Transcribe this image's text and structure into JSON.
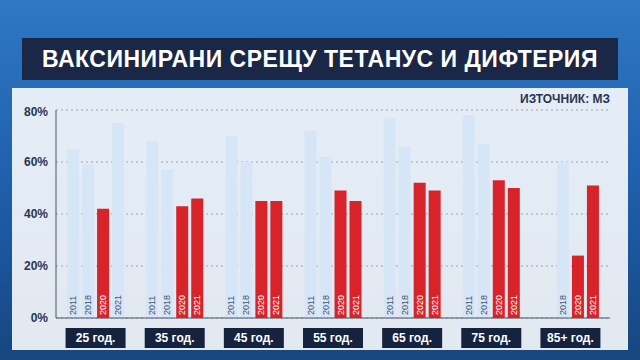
{
  "chart_data": {
    "type": "bar",
    "title": "ВАКСИНИРАНИ СРЕЩУ ТЕТАНУС И ДИФТЕРИЯ",
    "subtitle": "ИЗТОЧНИК: МЗ",
    "categories": [
      "25 год.",
      "35 год.",
      "45 год.",
      "55 год.",
      "65 год.",
      "75 год.",
      "85+ год."
    ],
    "series": [
      {
        "name": "2011",
        "color": "#d6e6f7",
        "values": [
          65,
          68,
          70,
          72,
          77,
          78,
          null
        ]
      },
      {
        "name": "2018",
        "color": "#d6e6f7",
        "values": [
          59,
          57,
          60,
          62,
          66,
          67,
          60
        ]
      },
      {
        "name": "2020",
        "color": "#d8232a",
        "values": [
          42,
          43,
          45,
          49,
          52,
          53,
          24
        ]
      },
      {
        "name": "2021",
        "colors": [
          "#d6e6f7",
          "#d8232a",
          "#d8232a",
          "#d8232a",
          "#d8232a",
          "#d8232a",
          "#d8232a"
        ],
        "values": [
          75,
          46,
          45,
          45,
          49,
          50,
          51
        ]
      }
    ],
    "ylim": [
      0,
      80
    ],
    "yticks": [
      {
        "value": 0,
        "label": "0%"
      },
      {
        "value": 20,
        "label": "20%"
      },
      {
        "value": 40,
        "label": "40%"
      },
      {
        "value": 60,
        "label": "60%"
      },
      {
        "value": 80,
        "label": "80%"
      }
    ],
    "grid": true
  }
}
